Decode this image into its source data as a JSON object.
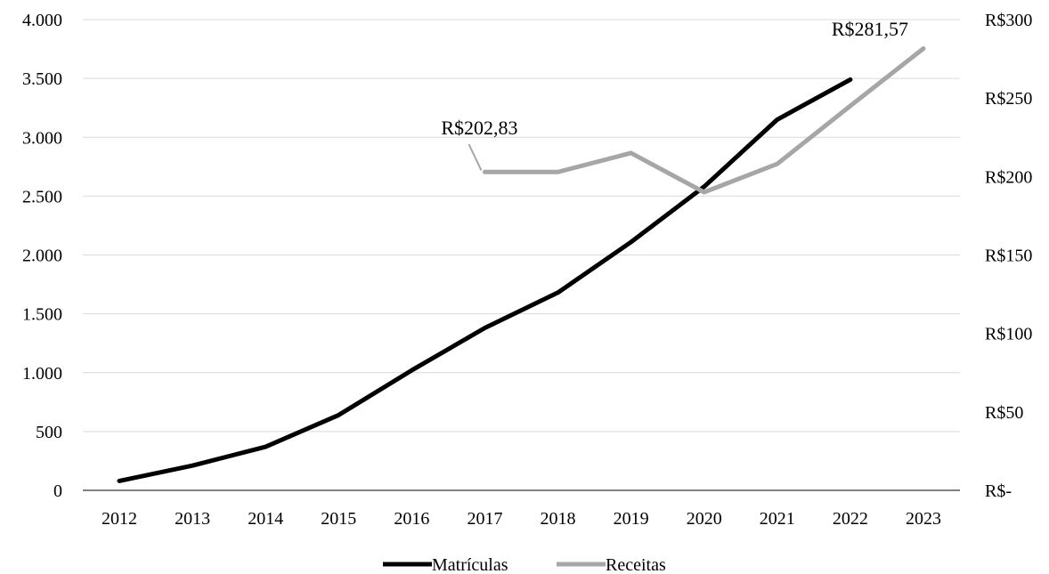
{
  "chart_data": {
    "type": "line",
    "title": "",
    "xlabel": "",
    "ylabel": "",
    "x": [
      "2012",
      "2013",
      "2014",
      "2015",
      "2016",
      "2017",
      "2018",
      "2019",
      "2020",
      "2021",
      "2022",
      "2023"
    ],
    "series": [
      {
        "name": "Matrículas",
        "axis": "left",
        "color": "#000000",
        "values": [
          80,
          210,
          370,
          640,
          1020,
          1380,
          1680,
          2110,
          2580,
          3150,
          3490,
          null
        ]
      },
      {
        "name": "Receitas",
        "axis": "right",
        "color": "#a6a6a6",
        "values": [
          null,
          null,
          null,
          null,
          null,
          202.83,
          202.83,
          215,
          190,
          208,
          245,
          281.57
        ]
      }
    ],
    "y_left": {
      "min": 0,
      "max": 4000,
      "ticks": [
        0,
        500,
        1000,
        1500,
        2000,
        2500,
        3000,
        3500,
        4000
      ],
      "tick_labels": [
        "0",
        "500",
        "1.000",
        "1.500",
        "2.000",
        "2.500",
        "3.000",
        "3.500",
        "4.000"
      ]
    },
    "y_right": {
      "min": 0,
      "max": 300,
      "ticks": [
        0,
        50,
        100,
        150,
        200,
        250,
        300
      ],
      "tick_labels": [
        "R$-",
        "R$50",
        "R$100",
        "R$150",
        "R$200",
        "R$250",
        "R$300"
      ]
    },
    "annotations": [
      {
        "text": "R$202,83",
        "series": "Receitas",
        "x": "2017"
      },
      {
        "text": "R$281,57",
        "series": "Receitas",
        "x": "2023"
      }
    ],
    "grid": true,
    "legend": "bottom-center",
    "grid_color": "#d9d9d9"
  }
}
